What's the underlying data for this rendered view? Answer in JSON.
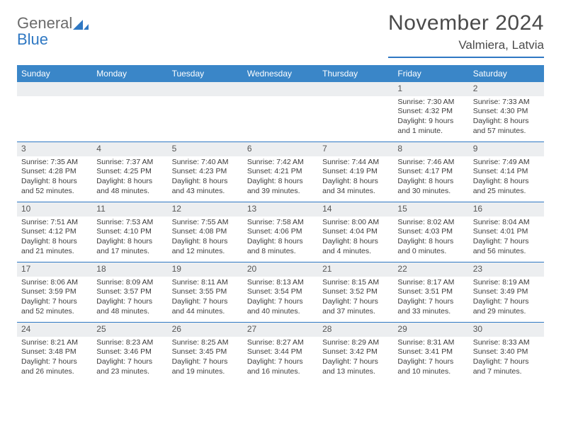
{
  "logo": {
    "general": "General",
    "blue": "Blue"
  },
  "title": "November 2024",
  "location": "Valmiera, Latvia",
  "colors": {
    "header_bar": "#3a86c8",
    "accent": "#2f78c3",
    "daynum_bg": "#eceef0",
    "text": "#3d3d3d",
    "title_text": "#4a4a4a",
    "logo_gray": "#6b6b6b"
  },
  "day_headers": [
    "Sunday",
    "Monday",
    "Tuesday",
    "Wednesday",
    "Thursday",
    "Friday",
    "Saturday"
  ],
  "weeks": [
    [
      {
        "empty": true
      },
      {
        "empty": true
      },
      {
        "empty": true
      },
      {
        "empty": true
      },
      {
        "empty": true
      },
      {
        "num": "1",
        "sunrise": "7:30 AM",
        "sunset": "4:32 PM",
        "daylight": "9 hours and 1 minute."
      },
      {
        "num": "2",
        "sunrise": "7:33 AM",
        "sunset": "4:30 PM",
        "daylight": "8 hours and 57 minutes."
      }
    ],
    [
      {
        "num": "3",
        "sunrise": "7:35 AM",
        "sunset": "4:28 PM",
        "daylight": "8 hours and 52 minutes."
      },
      {
        "num": "4",
        "sunrise": "7:37 AM",
        "sunset": "4:25 PM",
        "daylight": "8 hours and 48 minutes."
      },
      {
        "num": "5",
        "sunrise": "7:40 AM",
        "sunset": "4:23 PM",
        "daylight": "8 hours and 43 minutes."
      },
      {
        "num": "6",
        "sunrise": "7:42 AM",
        "sunset": "4:21 PM",
        "daylight": "8 hours and 39 minutes."
      },
      {
        "num": "7",
        "sunrise": "7:44 AM",
        "sunset": "4:19 PM",
        "daylight": "8 hours and 34 minutes."
      },
      {
        "num": "8",
        "sunrise": "7:46 AM",
        "sunset": "4:17 PM",
        "daylight": "8 hours and 30 minutes."
      },
      {
        "num": "9",
        "sunrise": "7:49 AM",
        "sunset": "4:14 PM",
        "daylight": "8 hours and 25 minutes."
      }
    ],
    [
      {
        "num": "10",
        "sunrise": "7:51 AM",
        "sunset": "4:12 PM",
        "daylight": "8 hours and 21 minutes."
      },
      {
        "num": "11",
        "sunrise": "7:53 AM",
        "sunset": "4:10 PM",
        "daylight": "8 hours and 17 minutes."
      },
      {
        "num": "12",
        "sunrise": "7:55 AM",
        "sunset": "4:08 PM",
        "daylight": "8 hours and 12 minutes."
      },
      {
        "num": "13",
        "sunrise": "7:58 AM",
        "sunset": "4:06 PM",
        "daylight": "8 hours and 8 minutes."
      },
      {
        "num": "14",
        "sunrise": "8:00 AM",
        "sunset": "4:04 PM",
        "daylight": "8 hours and 4 minutes."
      },
      {
        "num": "15",
        "sunrise": "8:02 AM",
        "sunset": "4:03 PM",
        "daylight": "8 hours and 0 minutes."
      },
      {
        "num": "16",
        "sunrise": "8:04 AM",
        "sunset": "4:01 PM",
        "daylight": "7 hours and 56 minutes."
      }
    ],
    [
      {
        "num": "17",
        "sunrise": "8:06 AM",
        "sunset": "3:59 PM",
        "daylight": "7 hours and 52 minutes."
      },
      {
        "num": "18",
        "sunrise": "8:09 AM",
        "sunset": "3:57 PM",
        "daylight": "7 hours and 48 minutes."
      },
      {
        "num": "19",
        "sunrise": "8:11 AM",
        "sunset": "3:55 PM",
        "daylight": "7 hours and 44 minutes."
      },
      {
        "num": "20",
        "sunrise": "8:13 AM",
        "sunset": "3:54 PM",
        "daylight": "7 hours and 40 minutes."
      },
      {
        "num": "21",
        "sunrise": "8:15 AM",
        "sunset": "3:52 PM",
        "daylight": "7 hours and 37 minutes."
      },
      {
        "num": "22",
        "sunrise": "8:17 AM",
        "sunset": "3:51 PM",
        "daylight": "7 hours and 33 minutes."
      },
      {
        "num": "23",
        "sunrise": "8:19 AM",
        "sunset": "3:49 PM",
        "daylight": "7 hours and 29 minutes."
      }
    ],
    [
      {
        "num": "24",
        "sunrise": "8:21 AM",
        "sunset": "3:48 PM",
        "daylight": "7 hours and 26 minutes."
      },
      {
        "num": "25",
        "sunrise": "8:23 AM",
        "sunset": "3:46 PM",
        "daylight": "7 hours and 23 minutes."
      },
      {
        "num": "26",
        "sunrise": "8:25 AM",
        "sunset": "3:45 PM",
        "daylight": "7 hours and 19 minutes."
      },
      {
        "num": "27",
        "sunrise": "8:27 AM",
        "sunset": "3:44 PM",
        "daylight": "7 hours and 16 minutes."
      },
      {
        "num": "28",
        "sunrise": "8:29 AM",
        "sunset": "3:42 PM",
        "daylight": "7 hours and 13 minutes."
      },
      {
        "num": "29",
        "sunrise": "8:31 AM",
        "sunset": "3:41 PM",
        "daylight": "7 hours and 10 minutes."
      },
      {
        "num": "30",
        "sunrise": "8:33 AM",
        "sunset": "3:40 PM",
        "daylight": "7 hours and 7 minutes."
      }
    ]
  ],
  "labels": {
    "sunrise": "Sunrise:",
    "sunset": "Sunset:",
    "daylight": "Daylight:"
  }
}
